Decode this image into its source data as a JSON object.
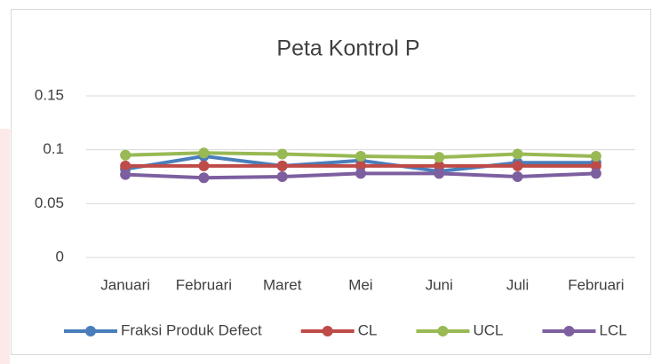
{
  "chart_data": {
    "type": "line",
    "title": "Peta Kontrol P",
    "categories": [
      "Januari",
      "Februari",
      "Maret",
      "Mei",
      "Juni",
      "Juli",
      "Februari"
    ],
    "series": [
      {
        "name": "Fraksi Produk Defect",
        "color": "#4a7ebb",
        "values": [
          0.082,
          0.094,
          0.085,
          0.09,
          0.08,
          0.088,
          0.088
        ]
      },
      {
        "name": "CL",
        "color": "#be4b48",
        "values": [
          0.085,
          0.085,
          0.085,
          0.085,
          0.085,
          0.085,
          0.085
        ]
      },
      {
        "name": "UCL",
        "color": "#98b954",
        "values": [
          0.095,
          0.097,
          0.096,
          0.094,
          0.093,
          0.096,
          0.094
        ]
      },
      {
        "name": "LCL",
        "color": "#7d5fa0",
        "values": [
          0.077,
          0.074,
          0.075,
          0.078,
          0.078,
          0.075,
          0.078
        ]
      }
    ],
    "ylim": [
      0,
      0.15
    ],
    "yticks": [
      0,
      0.05,
      0.1,
      0.15
    ],
    "grid": true,
    "legend": "bottom"
  }
}
